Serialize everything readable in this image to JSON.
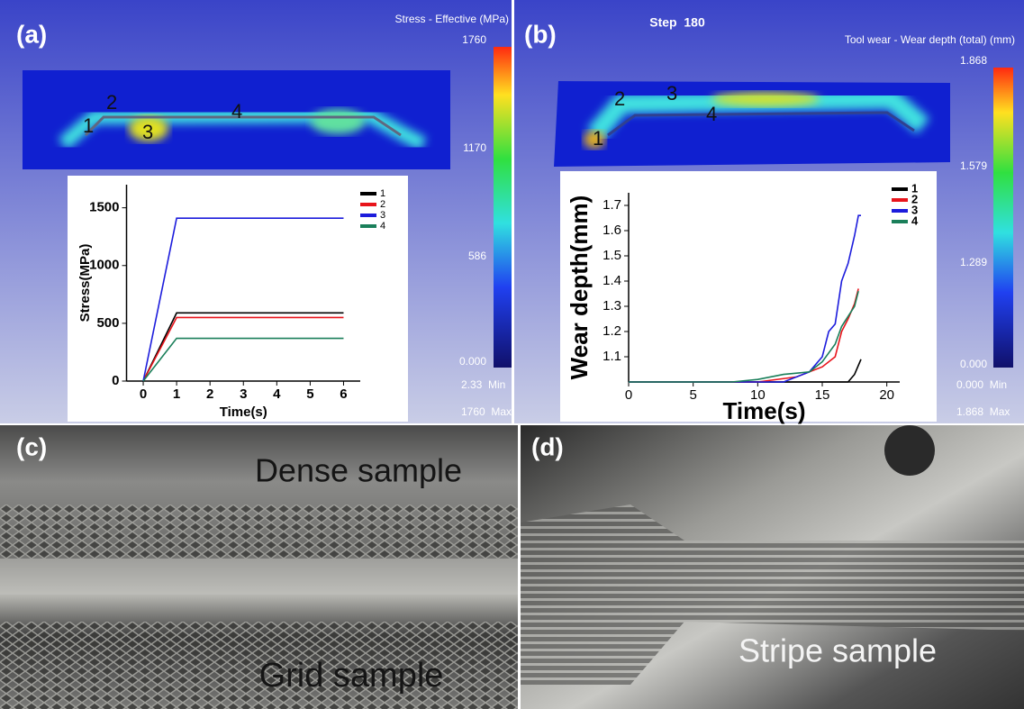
{
  "panels": {
    "a": {
      "label": "(a)",
      "colorbar_title": "Stress - Effective (MPa)",
      "colorbar_ticks": [
        "1760",
        "1170",
        "586",
        "0.000"
      ],
      "min_text": "2.33  Min",
      "max_text": "1760  Max",
      "points": [
        "1",
        "2",
        "3",
        "4"
      ]
    },
    "b": {
      "label": "(b)",
      "step": "Step  180",
      "colorbar_title": "Tool wear - Wear depth (total) (mm)",
      "colorbar_ticks": [
        "1.868",
        "1.579",
        "1.289",
        "0.000"
      ],
      "min_text": "0.000  Min",
      "max_text": "1.868  Max",
      "points": [
        "1",
        "2",
        "3",
        "4"
      ]
    },
    "c": {
      "label": "(c)",
      "top_caption": "Dense sample",
      "bottom_caption": "Grid sample"
    },
    "d": {
      "label": "(d)",
      "caption": "Stripe sample"
    }
  },
  "chart_data": [
    {
      "type": "line",
      "xlabel": "Time(s)",
      "ylabel": "Stress(MPa)",
      "x": [
        0,
        1,
        6
      ],
      "series": [
        {
          "name": "1",
          "color": "#000000",
          "values": [
            0,
            590,
            590
          ]
        },
        {
          "name": "2",
          "color": "#e8141b",
          "values": [
            0,
            550,
            550
          ]
        },
        {
          "name": "3",
          "color": "#1c1cdc",
          "values": [
            0,
            1410,
            1410
          ]
        },
        {
          "name": "4",
          "color": "#1a7f5a",
          "values": [
            0,
            370,
            370
          ]
        }
      ],
      "xlim": [
        -0.5,
        6.5
      ],
      "xticks": [
        0,
        1,
        2,
        3,
        4,
        5,
        6
      ],
      "ylim": [
        0,
        1700
      ],
      "yticks": [
        0,
        500,
        1000,
        1500
      ],
      "legend": "upper right"
    },
    {
      "type": "line",
      "xlabel": "Time(s)",
      "ylabel": "Wear depth(mm)",
      "series": [
        {
          "name": "1",
          "color": "#000000",
          "x": [
            0,
            10,
            17,
            17.5,
            18
          ],
          "values": [
            1.0,
            1.0,
            1.0,
            1.03,
            1.09
          ]
        },
        {
          "name": "2",
          "color": "#e8141b",
          "x": [
            0,
            10,
            13,
            15,
            16,
            16.5,
            17,
            17.5,
            17.8
          ],
          "values": [
            1.0,
            1.0,
            1.02,
            1.06,
            1.1,
            1.2,
            1.25,
            1.31,
            1.37
          ]
        },
        {
          "name": "3",
          "color": "#1c1cdc",
          "x": [
            0,
            12,
            14,
            15,
            15.5,
            16,
            16.5,
            17,
            17.5,
            17.8,
            18
          ],
          "values": [
            1.0,
            1.0,
            1.04,
            1.1,
            1.2,
            1.23,
            1.4,
            1.47,
            1.58,
            1.66,
            1.66
          ]
        },
        {
          "name": "4",
          "color": "#1a7f5a",
          "x": [
            0,
            8,
            10,
            12,
            14,
            15,
            16,
            16.5,
            17,
            17.5,
            17.8
          ],
          "values": [
            1.0,
            1.0,
            1.01,
            1.03,
            1.04,
            1.08,
            1.15,
            1.22,
            1.26,
            1.3,
            1.36
          ]
        }
      ],
      "xlim": [
        0,
        21
      ],
      "xticks": [
        0,
        5,
        10,
        15,
        20
      ],
      "ylim": [
        1.0,
        1.75
      ],
      "yticks": [
        1.1,
        1.2,
        1.3,
        1.4,
        1.5,
        1.6,
        1.7
      ],
      "legend": "upper right"
    }
  ]
}
